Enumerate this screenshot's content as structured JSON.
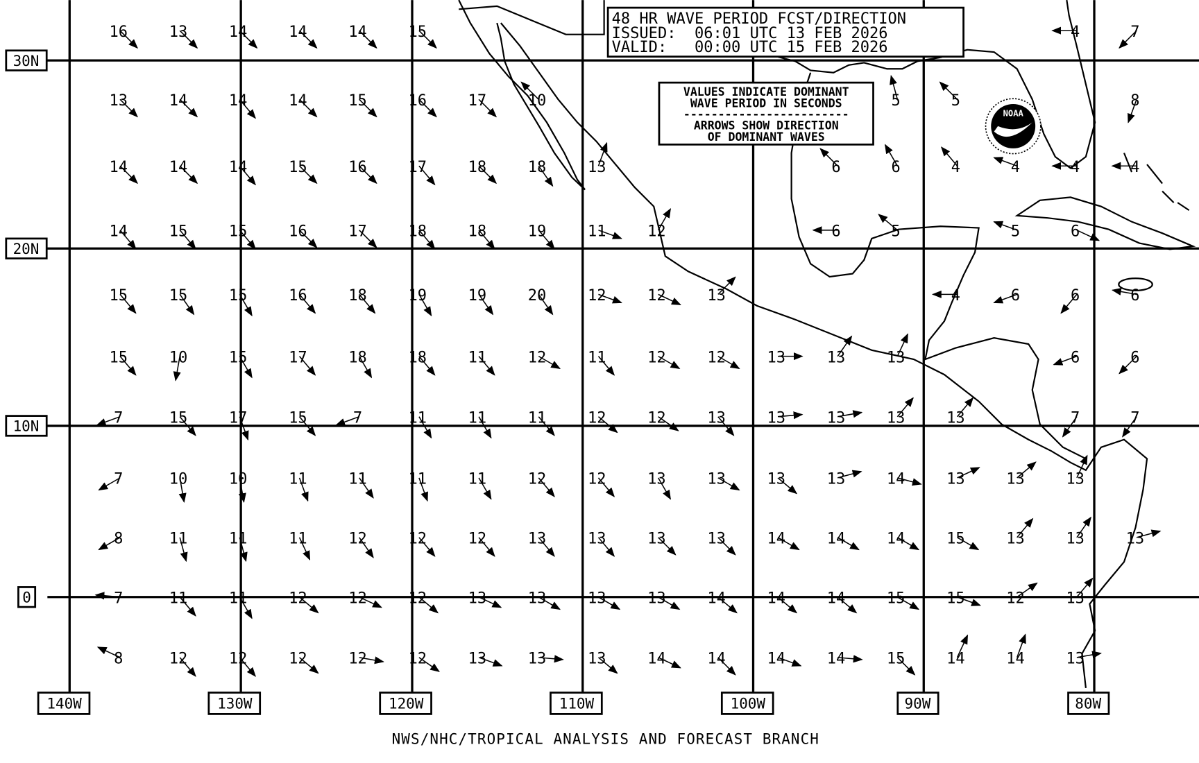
{
  "header": {
    "title": "48 HR WAVE PERIOD FCST/DIRECTION",
    "issued": "ISSUED:  06:01 UTC 13 FEB 2026",
    "valid": "VALID:   00:00 UTC 15 FEB 2026"
  },
  "legend": {
    "line1": "VALUES INDICATE DOMINANT",
    "line2": "WAVE PERIOD IN SECONDS",
    "divider": "------------------------",
    "line3": "ARROWS SHOW DIRECTION",
    "line4": "OF DOMINANT WAVES"
  },
  "logo": {
    "text": "NOAA"
  },
  "lat_labels": [
    "30N",
    "20N",
    "10N",
    "0"
  ],
  "lon_labels": [
    "140W",
    "130W",
    "120W",
    "110W",
    "100W",
    "90W",
    "80W"
  ],
  "footer": "NWS/NHC/TROPICAL ANALYSIS AND FORECAST BRANCH",
  "colors": {
    "ink": "#000000",
    "background": "#ffffff"
  },
  "wave_grid": {
    "units": "seconds",
    "direction_note": "arrow heading in compass degrees (direction waves travel toward)",
    "rows": [
      [
        [
          16,
          135
        ],
        [
          13,
          135
        ],
        [
          14,
          135
        ],
        [
          14,
          135
        ],
        [
          14,
          135
        ],
        [
          15,
          135
        ],
        null,
        null,
        null,
        null,
        null,
        null,
        null,
        null,
        null,
        null,
        [
          4,
          270
        ],
        [
          7,
          225
        ]
      ],
      [
        [
          13,
          135
        ],
        [
          14,
          135
        ],
        [
          14,
          140
        ],
        [
          14,
          135
        ],
        [
          15,
          135
        ],
        [
          16,
          135
        ],
        [
          17,
          135
        ],
        [
          10,
          315
        ],
        null,
        null,
        null,
        null,
        null,
        [
          5,
          345
        ],
        [
          5,
          315
        ],
        null,
        null,
        [
          8,
          200
        ]
      ],
      [
        [
          14,
          135
        ],
        [
          14,
          135
        ],
        [
          14,
          140
        ],
        [
          15,
          135
        ],
        [
          16,
          135
        ],
        [
          17,
          140
        ],
        [
          18,
          135
        ],
        [
          18,
          145
        ],
        [
          13,
          20
        ],
        null,
        null,
        null,
        [
          6,
          315
        ],
        [
          6,
          330
        ],
        [
          4,
          320
        ],
        [
          4,
          290
        ],
        [
          4,
          270
        ],
        [
          4,
          270
        ]
      ],
      [
        [
          14,
          140
        ],
        [
          15,
          140
        ],
        [
          15,
          140
        ],
        [
          16,
          135
        ],
        [
          17,
          135
        ],
        [
          18,
          140
        ],
        [
          18,
          140
        ],
        [
          19,
          140
        ],
        [
          11,
          110
        ],
        [
          12,
          30
        ],
        null,
        null,
        [
          6,
          270
        ],
        [
          5,
          310
        ],
        null,
        [
          5,
          290
        ],
        [
          6,
          115
        ],
        null
      ],
      [
        [
          15,
          140
        ],
        [
          15,
          145
        ],
        [
          15,
          150
        ],
        [
          16,
          140
        ],
        [
          18,
          140
        ],
        [
          19,
          150
        ],
        [
          19,
          145
        ],
        [
          20,
          145
        ],
        [
          12,
          110
        ],
        [
          12,
          115
        ],
        [
          13,
          45
        ],
        null,
        null,
        null,
        [
          4,
          270
        ],
        [
          6,
          250
        ],
        [
          6,
          220
        ],
        [
          6,
          280
        ]
      ],
      [
        [
          15,
          140
        ],
        [
          10,
          190
        ],
        [
          15,
          150
        ],
        [
          17,
          140
        ],
        [
          18,
          150
        ],
        [
          18,
          140
        ],
        [
          11,
          140
        ],
        [
          12,
          120
        ],
        [
          11,
          140
        ],
        [
          12,
          120
        ],
        [
          12,
          120
        ],
        [
          13,
          90
        ],
        [
          13,
          35
        ],
        [
          13,
          25
        ],
        null,
        null,
        [
          6,
          250
        ],
        [
          6,
          225
        ]
      ],
      [
        [
          7,
          250
        ],
        [
          15,
          140
        ],
        [
          17,
          160
        ],
        [
          15,
          140
        ],
        [
          7,
          250
        ],
        [
          11,
          150
        ],
        [
          11,
          150
        ],
        [
          11,
          140
        ],
        [
          12,
          130
        ],
        [
          12,
          125
        ],
        [
          13,
          140
        ],
        [
          13,
          85
        ],
        [
          13,
          80
        ],
        [
          13,
          40
        ],
        [
          13,
          40
        ],
        null,
        [
          7,
          215
        ],
        [
          7,
          215
        ]
      ],
      [
        [
          7,
          240
        ],
        [
          10,
          170
        ],
        [
          10,
          170
        ],
        [
          11,
          160
        ],
        [
          11,
          145
        ],
        [
          11,
          160
        ],
        [
          11,
          150
        ],
        [
          12,
          140
        ],
        [
          12,
          140
        ],
        [
          13,
          150
        ],
        [
          13,
          120
        ],
        [
          13,
          130
        ],
        [
          13,
          75
        ],
        [
          14,
          105
        ],
        [
          13,
          65
        ],
        [
          13,
          50
        ],
        [
          13,
          25
        ],
        null
      ],
      [
        [
          8,
          240
        ],
        [
          11,
          165
        ],
        [
          11,
          165
        ],
        [
          11,
          155
        ],
        [
          12,
          145
        ],
        [
          12,
          140
        ],
        [
          12,
          140
        ],
        [
          13,
          140
        ],
        [
          13,
          140
        ],
        [
          13,
          135
        ],
        [
          13,
          135
        ],
        [
          14,
          120
        ],
        [
          14,
          120
        ],
        [
          14,
          120
        ],
        [
          15,
          120
        ],
        [
          13,
          40
        ],
        [
          13,
          35
        ],
        [
          13,
          75
        ]
      ],
      [
        [
          7,
          275
        ],
        [
          11,
          140
        ],
        [
          11,
          150
        ],
        [
          12,
          130
        ],
        [
          12,
          115
        ],
        [
          12,
          130
        ],
        [
          13,
          115
        ],
        [
          13,
          120
        ],
        [
          13,
          120
        ],
        [
          13,
          120
        ],
        [
          14,
          130
        ],
        [
          14,
          130
        ],
        [
          14,
          130
        ],
        [
          15,
          120
        ],
        [
          15,
          110
        ],
        [
          12,
          55
        ],
        [
          13,
          40
        ],
        null
      ],
      [
        [
          8,
          295
        ],
        [
          12,
          140
        ],
        [
          12,
          140
        ],
        [
          12,
          130
        ],
        [
          12,
          100
        ],
        [
          12,
          125
        ],
        [
          13,
          110
        ],
        [
          13,
          95
        ],
        [
          13,
          130
        ],
        [
          14,
          115
        ],
        [
          14,
          135
        ],
        [
          14,
          110
        ],
        [
          14,
          95
        ],
        [
          15,
          135
        ],
        [
          14,
          25
        ],
        [
          14,
          20
        ],
        [
          13,
          80
        ],
        null
      ]
    ]
  }
}
